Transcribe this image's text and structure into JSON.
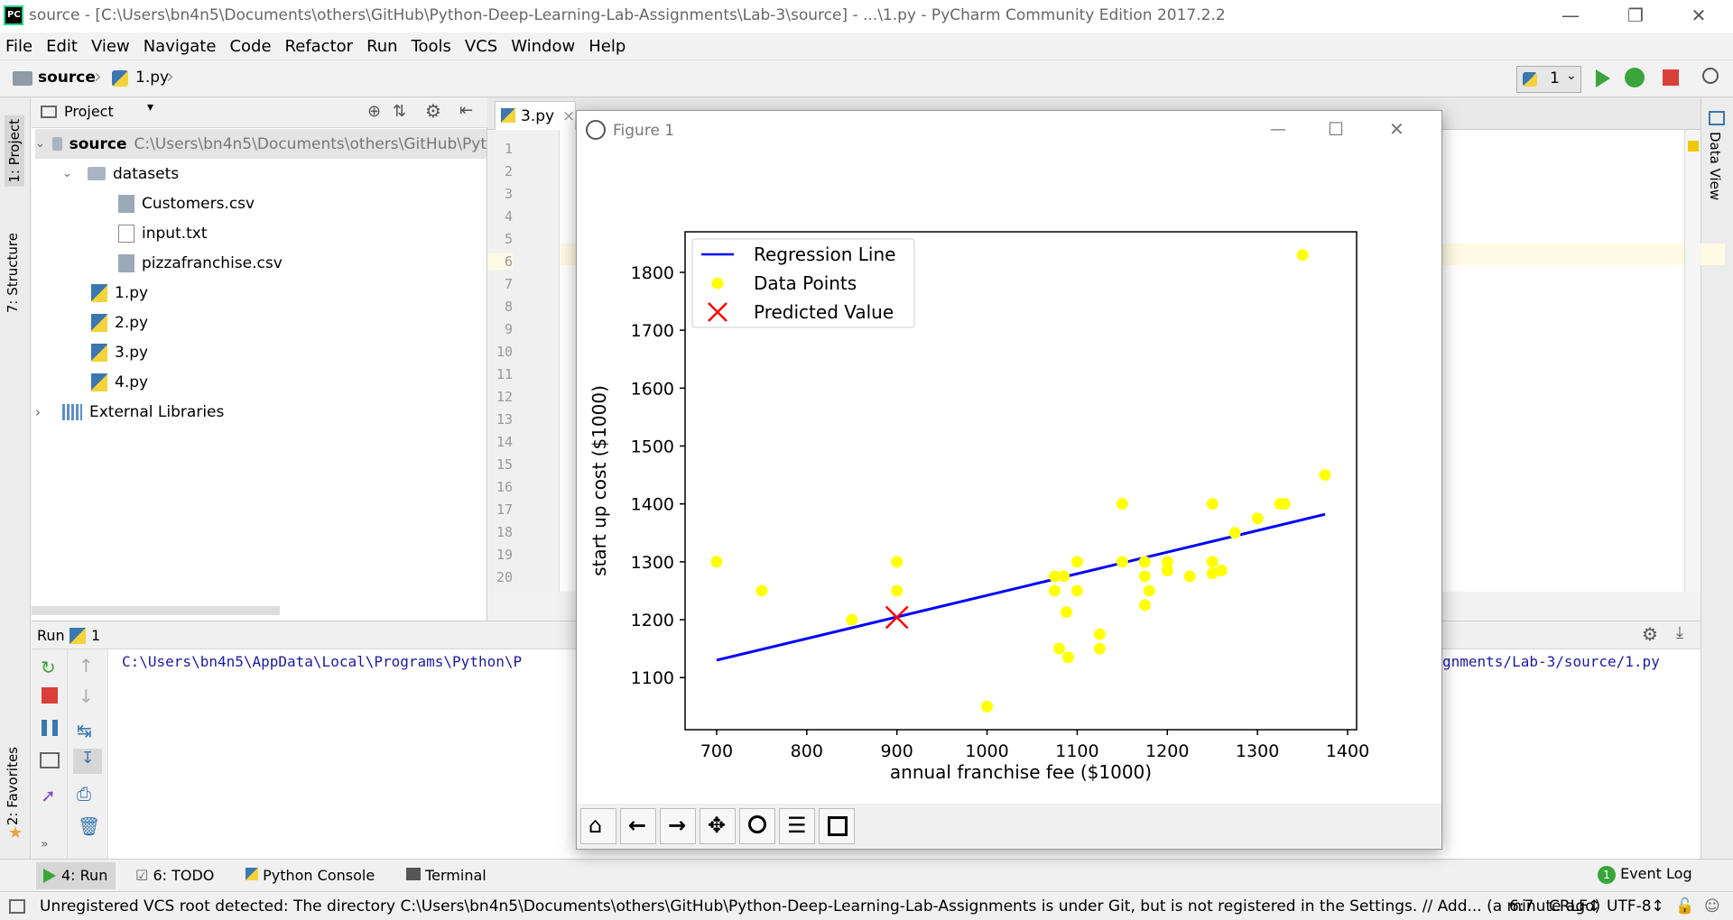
{
  "window": {
    "title": "source - [C:\\Users\\bn4n5\\Documents\\others\\GitHub\\Python-Deep-Learning-Lab-Assignments\\Lab-3\\source] - ...\\1.py - PyCharm Community Edition 2017.2.2",
    "logo": "PC"
  },
  "menu": [
    "File",
    "Edit",
    "View",
    "Navigate",
    "Code",
    "Refactor",
    "Run",
    "Tools",
    "VCS",
    "Window",
    "Help"
  ],
  "nav": {
    "crumb1": "source",
    "crumb2": "1.py",
    "run_config": "1"
  },
  "side_tabs": {
    "project": "1: Project",
    "structure": "7: Structure",
    "favorites": "2: Favorites",
    "dataview": "Data View"
  },
  "project": {
    "header": "Project",
    "root_name": "source",
    "root_path": "C:\\Users\\bn4n5\\Documents\\others\\GitHub\\Pyt",
    "items": [
      {
        "label": "datasets",
        "kind": "folder"
      },
      {
        "label": "Customers.csv",
        "kind": "csv"
      },
      {
        "label": "input.txt",
        "kind": "txt"
      },
      {
        "label": "pizzafranchise.csv",
        "kind": "csv"
      },
      {
        "label": "1.py",
        "kind": "py"
      },
      {
        "label": "2.py",
        "kind": "py"
      },
      {
        "label": "3.py",
        "kind": "py"
      },
      {
        "label": "4.py",
        "kind": "py"
      }
    ],
    "external": "External Libraries"
  },
  "editor": {
    "tab_active": "3.py",
    "line_numbers": [
      "1",
      "2",
      "3",
      "4",
      "5",
      "6",
      "7",
      "8",
      "9",
      "10",
      "11",
      "12",
      "13",
      "14",
      "15",
      "16",
      "17",
      "18",
      "19",
      "20"
    ]
  },
  "run": {
    "label": "Run",
    "config": "1",
    "cmd_left": "C:\\Users\\bn4n5\\AppData\\Local\\Programs\\Python\\P",
    "cmd_right": "gnments/Lab-3/source/1.py"
  },
  "bottom_tabs": {
    "run": "4: Run",
    "todo": "6: TODO",
    "console": "Python Console",
    "terminal": "Terminal",
    "eventlog": "Event Log",
    "eventcount": "1"
  },
  "status": {
    "message": "Unregistered VCS root detected: The directory C:\\Users\\bn4n5\\Documents\\others\\GitHub\\Python-Deep-Learning-Lab-Assignments is under Git, but is not registered in the Settings. // Add... (a minute ago)",
    "position": "6:7",
    "line_sep": "CRLF↕",
    "encoding": "UTF-8↕"
  },
  "figure": {
    "title": "Figure 1"
  },
  "colors": {
    "regression": "#0000ff",
    "points": "#ffff00",
    "predicted": "#ff0000"
  },
  "chart_data": {
    "type": "scatter",
    "xlabel": "annual franchise fee ($1000)",
    "ylabel": "start up cost ($1000)",
    "xlim": [
      665,
      1410
    ],
    "ylim": [
      1010,
      1870
    ],
    "xticks": [
      700,
      800,
      900,
      1000,
      1100,
      1200,
      1300,
      1400
    ],
    "yticks": [
      1100,
      1200,
      1300,
      1400,
      1500,
      1600,
      1700,
      1800
    ],
    "legend_position": "top-left",
    "series": [
      {
        "name": "Regression Line",
        "kind": "line",
        "x": [
          700,
          1375
        ],
        "y": [
          1130,
          1382
        ]
      },
      {
        "name": "Data Points",
        "kind": "scatter",
        "points": [
          [
            700,
            1300
          ],
          [
            750,
            1250
          ],
          [
            850,
            1200
          ],
          [
            900,
            1300
          ],
          [
            900,
            1250
          ],
          [
            1000,
            1050
          ],
          [
            1075,
            1275
          ],
          [
            1075,
            1250
          ],
          [
            1080,
            1150
          ],
          [
            1085,
            1275
          ],
          [
            1088,
            1213
          ],
          [
            1090,
            1135
          ],
          [
            1100,
            1300
          ],
          [
            1100,
            1250
          ],
          [
            1125,
            1175
          ],
          [
            1125,
            1150
          ],
          [
            1150,
            1400
          ],
          [
            1150,
            1300
          ],
          [
            1175,
            1300
          ],
          [
            1175,
            1275
          ],
          [
            1175,
            1225
          ],
          [
            1180,
            1250
          ],
          [
            1200,
            1300
          ],
          [
            1200,
            1285
          ],
          [
            1225,
            1275
          ],
          [
            1250,
            1400
          ],
          [
            1250,
            1300
          ],
          [
            1250,
            1280
          ],
          [
            1260,
            1285
          ],
          [
            1275,
            1350
          ],
          [
            1300,
            1375
          ],
          [
            1325,
            1400
          ],
          [
            1330,
            1400
          ],
          [
            1350,
            1830
          ],
          [
            1375,
            1450
          ]
        ]
      },
      {
        "name": "Predicted Value",
        "kind": "marker",
        "x": [
          900
        ],
        "y": [
          1204
        ]
      }
    ]
  }
}
